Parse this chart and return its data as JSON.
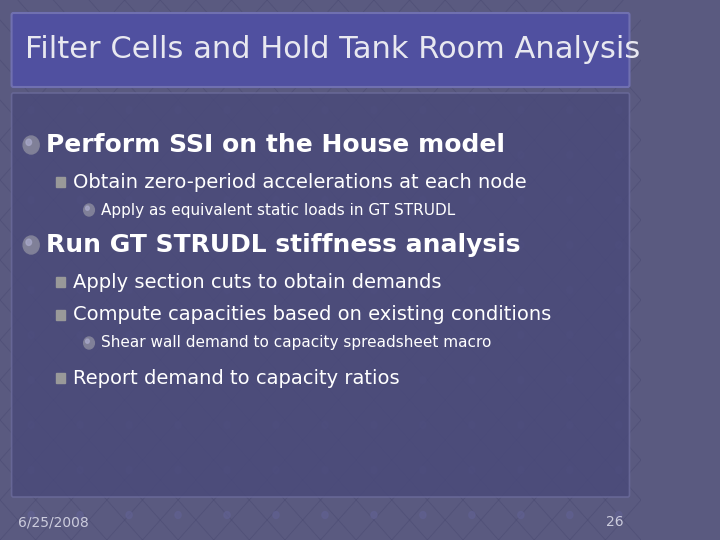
{
  "title": "Filter Cells and Hold Tank Room Analysis",
  "bg_color": "#5a5a80",
  "title_box_color": "#5555a0",
  "content_box_color": "#4a4a78",
  "title_text_color": "#e8e8f0",
  "content_text_color": "#ffffff",
  "footer_date": "6/25/2008",
  "footer_page": "26",
  "bullet1_main": "Perform SSI on the House model",
  "bullet1_sub1": "Obtain zero-period accelerations at each node",
  "bullet1_sub1_sub1": "Apply as equivalent static loads in GT STRUDL",
  "bullet2_main": "Run GT STRUDL stiffness analysis",
  "bullet2_sub1": "Apply section cuts to obtain demands",
  "bullet2_sub2": "Compute capacities based on existing conditions",
  "bullet2_sub2_sub1": "Shear wall demand to capacity spreadsheet macro",
  "bullet2_sub3": "Report demand to capacity ratios"
}
